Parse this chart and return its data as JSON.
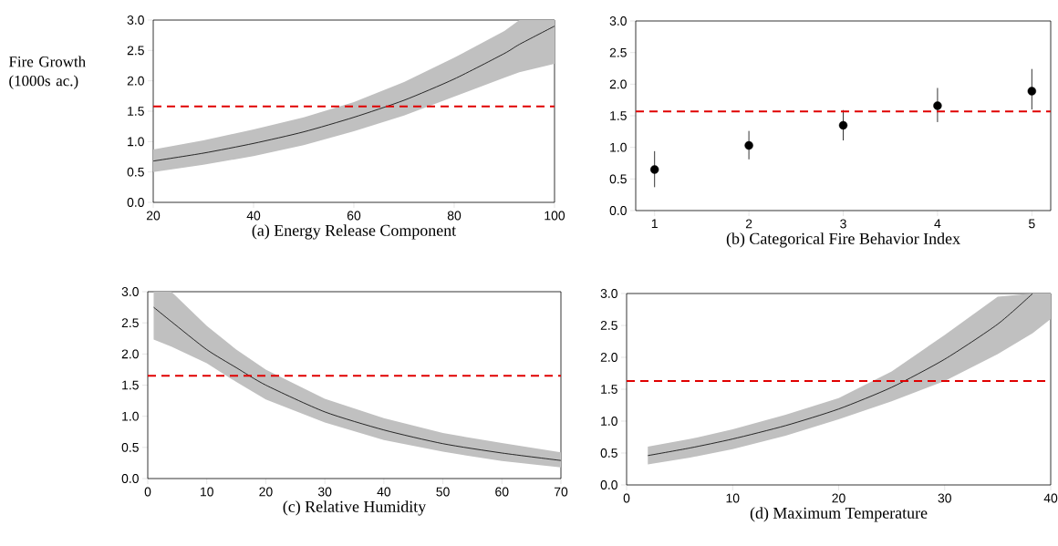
{
  "chart_data": [
    {
      "type": "line",
      "ylabel": "Fire Growth (1000s ac.)",
      "xlabel": "(a) Energy Release Component",
      "xlim": [
        20,
        100
      ],
      "ylim": [
        0,
        3
      ],
      "xticks": [
        20,
        40,
        60,
        80,
        100
      ],
      "yticks": [
        {
          "value": 0,
          "label": "0.0"
        },
        0.5,
        {
          "value": 1,
          "label": "1.0"
        },
        1.5,
        {
          "value": 2,
          "label": "2.0"
        },
        2.5,
        {
          "value": 3,
          "label": "3.0"
        }
      ],
      "series": [
        {
          "color": "#000000",
          "x": [
            20,
            30,
            40,
            50,
            60,
            70,
            80,
            90,
            93,
            100
          ],
          "values": [
            0.68,
            0.81,
            0.97,
            1.16,
            1.4,
            1.68,
            2.03,
            2.45,
            2.6,
            2.9
          ],
          "lower": [
            0.5,
            0.62,
            0.76,
            0.94,
            1.17,
            1.43,
            1.74,
            2.05,
            2.14,
            2.28
          ],
          "upper": [
            0.87,
            1.02,
            1.2,
            1.4,
            1.65,
            1.98,
            2.38,
            2.82,
            3.0,
            3.0
          ]
        }
      ],
      "ref_lines": [
        {
          "axis": "y",
          "value": 1.58,
          "color": "#e00000",
          "line_style": "dashed"
        }
      ]
    },
    {
      "type": "scatter",
      "xlabel": "(b) Categorical Fire Behavior Index",
      "xlim": [
        0.8,
        5.2
      ],
      "ylim": [
        0,
        3
      ],
      "xticks": [
        1,
        2,
        3,
        4,
        5
      ],
      "yticks": [
        {
          "value": 0,
          "label": "0.0"
        },
        0.5,
        {
          "value": 1,
          "label": "1.0"
        },
        1.5,
        {
          "value": 2,
          "label": "2.0"
        },
        2.5,
        {
          "value": 3,
          "label": "3.0"
        }
      ],
      "marker": "circle",
      "series": [
        {
          "color": "#000000",
          "x": [
            1,
            2,
            3,
            4,
            5
          ],
          "values": [
            0.65,
            1.03,
            1.35,
            1.66,
            1.89
          ],
          "errors": [
            [
              0.37,
              0.94
            ],
            [
              0.81,
              1.26
            ],
            [
              1.11,
              1.59
            ],
            [
              1.4,
              1.94
            ],
            [
              1.6,
              2.24
            ]
          ]
        }
      ],
      "ref_lines": [
        {
          "axis": "y",
          "value": 1.57,
          "color": "#e00000",
          "line_style": "dashed"
        }
      ]
    },
    {
      "type": "line",
      "xlabel": "(c) Relative Humidity",
      "xlim": [
        0,
        70
      ],
      "ylim": [
        0,
        3
      ],
      "xticks": [
        0,
        10,
        20,
        30,
        40,
        50,
        60,
        70
      ],
      "yticks": [
        {
          "value": 0,
          "label": "0.0"
        },
        0.5,
        {
          "value": 1,
          "label": "1.0"
        },
        1.5,
        {
          "value": 2,
          "label": "2.0"
        },
        2.5,
        {
          "value": 3,
          "label": "3.0"
        }
      ],
      "series": [
        {
          "color": "#000000",
          "x": [
            1,
            4,
            10,
            15,
            20,
            30,
            40,
            50,
            60,
            70
          ],
          "values": [
            2.75,
            2.52,
            2.07,
            1.78,
            1.5,
            1.07,
            0.78,
            0.56,
            0.41,
            0.29
          ],
          "lower": [
            2.23,
            2.12,
            1.85,
            1.55,
            1.27,
            0.9,
            0.62,
            0.43,
            0.28,
            0.18
          ],
          "upper": [
            3.0,
            3.0,
            2.45,
            2.07,
            1.75,
            1.28,
            0.97,
            0.73,
            0.57,
            0.42
          ]
        }
      ],
      "ref_lines": [
        {
          "axis": "y",
          "value": 1.65,
          "color": "#e00000",
          "line_style": "dashed"
        }
      ]
    },
    {
      "type": "line",
      "xlabel": "(d) Maximum Temperature",
      "xlim": [
        0,
        40
      ],
      "ylim": [
        0,
        3
      ],
      "xticks": [
        0,
        10,
        20,
        30,
        40
      ],
      "yticks": [
        {
          "value": 0,
          "label": "0.0"
        },
        0.5,
        {
          "value": 1,
          "label": "1.0"
        },
        1.5,
        {
          "value": 2,
          "label": "2.0"
        },
        2.5,
        {
          "value": 3,
          "label": "3.0"
        }
      ],
      "series": [
        {
          "color": "#000000",
          "x": [
            2,
            6,
            10,
            15,
            20,
            25,
            30,
            35,
            38.3,
            40
          ],
          "values": [
            0.46,
            0.58,
            0.72,
            0.93,
            1.19,
            1.53,
            1.97,
            2.52,
            3.0,
            null
          ],
          "lower": [
            0.32,
            0.43,
            0.56,
            0.77,
            1.03,
            1.31,
            1.63,
            2.05,
            2.38,
            2.6
          ],
          "upper": [
            0.6,
            0.72,
            0.87,
            1.1,
            1.36,
            1.78,
            2.35,
            2.95,
            3.0,
            3.0
          ]
        }
      ],
      "ref_lines": [
        {
          "axis": "y",
          "value": 1.63,
          "color": "#e00000",
          "line_style": "dashed"
        }
      ]
    }
  ]
}
